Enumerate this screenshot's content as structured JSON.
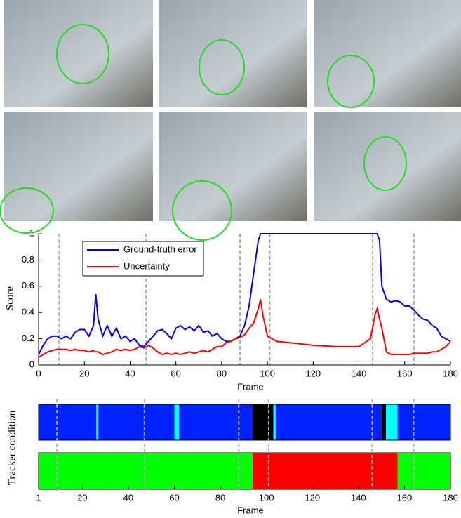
{
  "chart_data": [
    {
      "type": "line",
      "xlabel": "Frame",
      "ylabel": "Score",
      "xlim": [
        0,
        180
      ],
      "ylim": [
        0,
        1
      ],
      "xticks": [
        0,
        20,
        40,
        60,
        80,
        100,
        120,
        140,
        160,
        180
      ],
      "yticks": [
        0,
        0.2,
        0.4,
        0.6,
        0.8,
        1
      ],
      "x": [
        0,
        2,
        4,
        6,
        8,
        10,
        12,
        14,
        16,
        18,
        20,
        22,
        24,
        25,
        26,
        28,
        30,
        32,
        34,
        36,
        38,
        40,
        42,
        44,
        46,
        48,
        50,
        52,
        54,
        56,
        58,
        60,
        62,
        64,
        66,
        68,
        70,
        72,
        74,
        76,
        78,
        80,
        82,
        84,
        86,
        88,
        90,
        92,
        94,
        96,
        97,
        98,
        100,
        104,
        110,
        120,
        130,
        140,
        145,
        147,
        148,
        149,
        150,
        152,
        154,
        156,
        158,
        160,
        162,
        164,
        166,
        168,
        170,
        172,
        174,
        176,
        178,
        180
      ],
      "series": [
        {
          "name": "Ground-truth error",
          "color": "#0000ff",
          "values": [
            0.08,
            0.15,
            0.2,
            0.22,
            0.22,
            0.2,
            0.22,
            0.2,
            0.25,
            0.27,
            0.27,
            0.22,
            0.3,
            0.54,
            0.35,
            0.22,
            0.3,
            0.22,
            0.28,
            0.2,
            0.22,
            0.18,
            0.2,
            0.15,
            0.14,
            0.18,
            0.22,
            0.26,
            0.27,
            0.24,
            0.2,
            0.28,
            0.3,
            0.27,
            0.29,
            0.26,
            0.3,
            0.25,
            0.26,
            0.22,
            0.24,
            0.2,
            0.18,
            0.18,
            0.2,
            0.22,
            0.3,
            0.45,
            0.7,
            0.95,
            1,
            1,
            1,
            1,
            1,
            1,
            1,
            1,
            1,
            1,
            1,
            0.95,
            0.6,
            0.5,
            0.48,
            0.49,
            0.48,
            0.45,
            0.45,
            0.42,
            0.38,
            0.35,
            0.34,
            0.3,
            0.28,
            0.22,
            0.2,
            0.18
          ]
        },
        {
          "name": "Uncertainty",
          "color": "#ff0000",
          "values": [
            0.06,
            0.08,
            0.1,
            0.11,
            0.12,
            0.12,
            0.12,
            0.11,
            0.12,
            0.11,
            0.11,
            0.1,
            0.11,
            0.1,
            0.1,
            0.08,
            0.09,
            0.1,
            0.12,
            0.11,
            0.12,
            0.11,
            0.12,
            0.14,
            0.13,
            0.15,
            0.13,
            0.1,
            0.08,
            0.09,
            0.08,
            0.09,
            0.08,
            0.09,
            0.1,
            0.09,
            0.1,
            0.11,
            0.1,
            0.12,
            0.14,
            0.14,
            0.17,
            0.18,
            0.2,
            0.21,
            0.23,
            0.28,
            0.32,
            0.43,
            0.5,
            0.38,
            0.22,
            0.18,
            0.17,
            0.15,
            0.14,
            0.14,
            0.2,
            0.38,
            0.43,
            0.35,
            0.28,
            0.1,
            0.08,
            0.08,
            0.08,
            0.08,
            0.08,
            0.09,
            0.09,
            0.09,
            0.09,
            0.1,
            0.1,
            0.12,
            0.14,
            0.18
          ]
        }
      ],
      "markers": [
        9,
        47,
        88,
        101,
        146,
        164
      ]
    },
    {
      "type": "timeline",
      "xlabel": "Frame",
      "ylabel": "Tracker condition",
      "xlim": [
        1,
        180
      ],
      "xticks": [
        1,
        20,
        40,
        60,
        80,
        100,
        120,
        140,
        160,
        180
      ],
      "rows": [
        {
          "segments": [
            {
              "start": 1,
              "end": 26,
              "color": "#0022ff"
            },
            {
              "start": 26,
              "end": 27,
              "color": "#00ffff"
            },
            {
              "start": 27,
              "end": 60,
              "color": "#0022ff"
            },
            {
              "start": 60,
              "end": 62,
              "color": "#00ffff"
            },
            {
              "start": 62,
              "end": 94,
              "color": "#0022ff"
            },
            {
              "start": 94,
              "end": 103,
              "color": "#000000"
            },
            {
              "start": 103,
              "end": 104,
              "color": "#00ffff"
            },
            {
              "start": 104,
              "end": 150,
              "color": "#0022ff"
            },
            {
              "start": 150,
              "end": 152,
              "color": "#000000"
            },
            {
              "start": 152,
              "end": 157,
              "color": "#00ffff"
            },
            {
              "start": 157,
              "end": 180,
              "color": "#0022ff"
            }
          ]
        },
        {
          "segments": [
            {
              "start": 1,
              "end": 94,
              "color": "#00ff00"
            },
            {
              "start": 94,
              "end": 157,
              "color": "#ff0000"
            },
            {
              "start": 157,
              "end": 180,
              "color": "#00ff00"
            }
          ]
        }
      ]
    }
  ]
}
